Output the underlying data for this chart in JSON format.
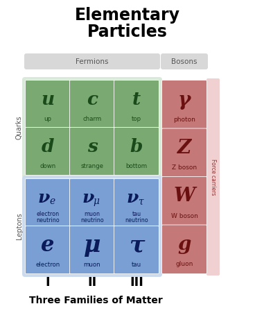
{
  "title": "Elementary\nParticles",
  "subtitle": "Three Families of Matter",
  "fermions_label": "Fermions",
  "bosons_label": "Bosons",
  "quarks_label": "Quarks",
  "leptons_label": "Leptons",
  "force_carriers_label": "Force carriers",
  "families_labels": [
    "I",
    "II",
    "III"
  ],
  "quark_cell_color": "#7aaa72",
  "quark_cell_text": "#1a4a1a",
  "quark_bg": "#daeada",
  "lepton_cell_color": "#7a9fd4",
  "lepton_cell_text": "#0a1a5a",
  "lepton_bg": "#ccdaee",
  "boson_cell_color": "#c47878",
  "boson_cell_text": "#6a1010",
  "boson_bg": "#f0d0d0",
  "fermion_header_bg": "#d8d8d8",
  "boson_header_bg": "#d8d8d8",
  "force_carriers_bg": "#f0d0d0",
  "background": "#ffffff",
  "quarks": [
    {
      "symbol": "u",
      "name": "up",
      "col": 0,
      "row": 0
    },
    {
      "symbol": "c",
      "name": "charm",
      "col": 1,
      "row": 0
    },
    {
      "symbol": "t",
      "name": "top",
      "col": 2,
      "row": 0
    },
    {
      "symbol": "d",
      "name": "down",
      "col": 0,
      "row": 1
    },
    {
      "symbol": "s",
      "name": "strange",
      "col": 1,
      "row": 1
    },
    {
      "symbol": "b",
      "name": "bottom",
      "col": 2,
      "row": 1
    }
  ],
  "neutrinos": [
    {
      "sym": "ν",
      "sub": "e",
      "name": "electron\nneutrino",
      "col": 0
    },
    {
      "sym": "ν",
      "sub": "μ",
      "name": "muon\nneutrino",
      "col": 1
    },
    {
      "sym": "ν",
      "sub": "τ",
      "name": "tau\nneutrino",
      "col": 2
    }
  ],
  "charged_leptons": [
    {
      "symbol": "e",
      "name": "electron",
      "col": 0
    },
    {
      "symbol": "μ",
      "name": "muon",
      "col": 1
    },
    {
      "symbol": "τ",
      "name": "tau",
      "col": 2
    }
  ],
  "bosons": [
    {
      "symbol": "γ",
      "name": "photon",
      "row": 0
    },
    {
      "symbol": "Z",
      "name": "Z boson",
      "row": 1
    },
    {
      "symbol": "W",
      "name": "W boson",
      "row": 2
    },
    {
      "symbol": "g",
      "name": "gluon",
      "row": 3
    }
  ]
}
